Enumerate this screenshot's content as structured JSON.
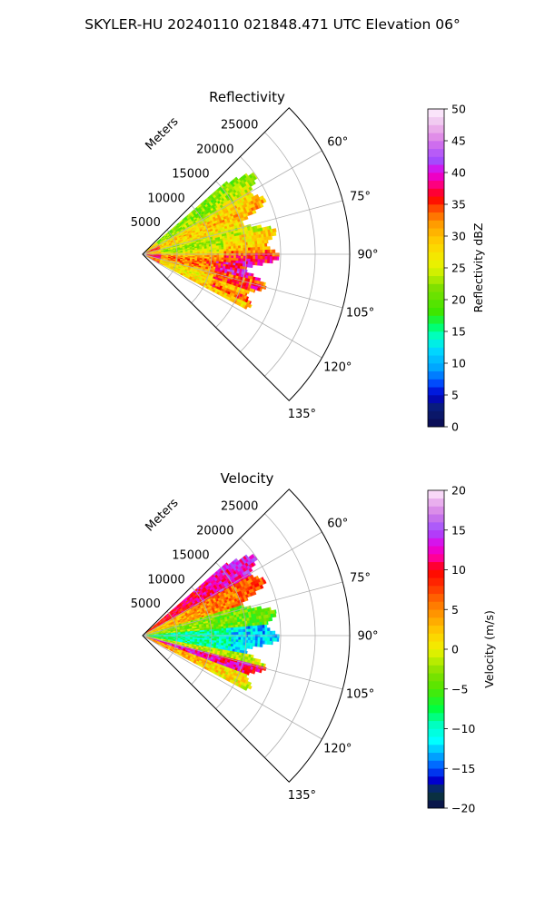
{
  "figure": {
    "title": "SKYLER-HU  20240110  021848.471 UTC Elevation 06°"
  },
  "chart_data": [
    {
      "type": "heatmap",
      "projection": "polar-sector",
      "title": "Reflectivity",
      "radial_label": "Meters",
      "theta_ticks": [
        60,
        75,
        90,
        105,
        120,
        135
      ],
      "theta_tick_labels": [
        "60°",
        "75°",
        "90°",
        "105°",
        "120°",
        "135°"
      ],
      "theta_range": [
        45,
        135
      ],
      "r_ticks": [
        5000,
        10000,
        15000,
        20000,
        25000
      ],
      "r_tick_labels": [
        "5000",
        "10000",
        "15000",
        "20000",
        "25000"
      ],
      "r_range": [
        0,
        30000
      ],
      "data_range_m": 21000,
      "data_theta_range": [
        49,
        118
      ],
      "grid": true,
      "colorbar": {
        "label": "Reflectivity dBZ",
        "vmin": 0,
        "vmax": 50,
        "ticks": [
          0,
          5,
          10,
          15,
          20,
          25,
          30,
          35,
          40,
          45,
          50
        ],
        "tick_labels": [
          "0",
          "5",
          "10",
          "15",
          "20",
          "25",
          "30",
          "35",
          "40",
          "45",
          "50"
        ],
        "stops": [
          [
            0,
            "#0a0a50"
          ],
          [
            3,
            "#0a1e78"
          ],
          [
            5,
            "#0000cd"
          ],
          [
            7,
            "#0050ff"
          ],
          [
            9,
            "#00a0ff"
          ],
          [
            12,
            "#00d8ff"
          ],
          [
            14,
            "#00ffd0"
          ],
          [
            16,
            "#00ff60"
          ],
          [
            18,
            "#3ce600"
          ],
          [
            22,
            "#82e000"
          ],
          [
            24,
            "#c8f000"
          ],
          [
            26,
            "#f0f000"
          ],
          [
            29,
            "#ffd000"
          ],
          [
            32,
            "#ff9a00"
          ],
          [
            34,
            "#ff5a00"
          ],
          [
            36,
            "#ff0000"
          ],
          [
            38,
            "#ff0078"
          ],
          [
            40,
            "#e600e6"
          ],
          [
            42,
            "#a050ff"
          ],
          [
            44,
            "#c864f0"
          ],
          [
            46,
            "#e696e6"
          ],
          [
            48,
            "#f0c8f0"
          ],
          [
            50,
            "#fff0ff"
          ]
        ]
      }
    },
    {
      "type": "heatmap",
      "projection": "polar-sector",
      "title": "Velocity",
      "radial_label": "Meters",
      "theta_ticks": [
        60,
        75,
        90,
        105,
        120,
        135
      ],
      "theta_tick_labels": [
        "60°",
        "75°",
        "90°",
        "105°",
        "120°",
        "135°"
      ],
      "theta_range": [
        45,
        135
      ],
      "r_ticks": [
        5000,
        10000,
        15000,
        20000,
        25000
      ],
      "r_tick_labels": [
        "5000",
        "10000",
        "15000",
        "20000",
        "25000"
      ],
      "r_range": [
        0,
        30000
      ],
      "data_range_m": 21000,
      "data_theta_range": [
        49,
        118
      ],
      "grid": true,
      "colorbar": {
        "label": "Velocity (m/s)",
        "vmin": -20,
        "vmax": 20,
        "ticks": [
          -20,
          -15,
          -10,
          -5,
          0,
          5,
          10,
          15,
          20
        ],
        "tick_labels": [
          "−20",
          "−15",
          "−10",
          "−5",
          "0",
          "5",
          "10",
          "15",
          "20"
        ],
        "stops": [
          [
            -20,
            "#0a0a50"
          ],
          [
            -18,
            "#0a3c3c"
          ],
          [
            -16.5,
            "#0000cd"
          ],
          [
            -15,
            "#0050ff"
          ],
          [
            -13.5,
            "#00a0ff"
          ],
          [
            -11.5,
            "#00ffff"
          ],
          [
            -9.5,
            "#00ffc0"
          ],
          [
            -7.5,
            "#00ff40"
          ],
          [
            -5,
            "#50e600"
          ],
          [
            -3,
            "#82e000"
          ],
          [
            -1,
            "#c8f000"
          ],
          [
            0,
            "#f0f000"
          ],
          [
            2,
            "#ffd000"
          ],
          [
            4,
            "#ffa000"
          ],
          [
            6,
            "#ff7000"
          ],
          [
            8,
            "#ff3000"
          ],
          [
            10,
            "#ff0000"
          ],
          [
            11.5,
            "#ff0096"
          ],
          [
            13,
            "#e600e6"
          ],
          [
            15,
            "#a050ff"
          ],
          [
            17,
            "#d27ce6"
          ],
          [
            19,
            "#f0c0f0"
          ],
          [
            20,
            "#fff0ff"
          ]
        ]
      }
    }
  ]
}
